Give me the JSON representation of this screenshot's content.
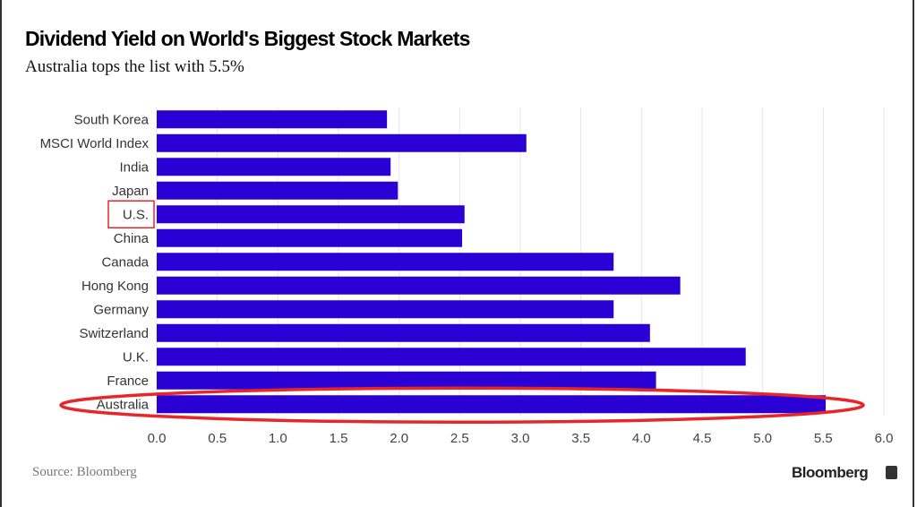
{
  "chart_data": {
    "type": "bar",
    "orientation": "horizontal",
    "title": "Dividend Yield on World's Biggest Stock Markets",
    "subtitle": "Australia tops the list with 5.5%",
    "categories": [
      "South Korea",
      "MSCI World Index",
      "India",
      "Japan",
      "U.S.",
      "China",
      "Canada",
      "Hong Kong",
      "Germany",
      "Switzerland",
      "U.K.",
      "France",
      "Australia"
    ],
    "values": [
      1.9,
      3.05,
      1.93,
      1.99,
      2.54,
      2.52,
      3.77,
      4.32,
      3.77,
      4.07,
      4.86,
      4.12,
      5.52
    ],
    "xlim": [
      0,
      6.0
    ],
    "xticks": [
      "0.0",
      "0.5",
      "1.0",
      "1.5",
      "2.0",
      "2.5",
      "3.0",
      "3.5",
      "4.0",
      "4.5",
      "5.0",
      "5.5",
      "6.0"
    ],
    "grid": true,
    "bar_color": "#2a00d4",
    "annotations": {
      "highlight_box": "U.S.",
      "highlight_ellipse": "Australia",
      "annotation_color": "#e8262a"
    },
    "source": "Source: Bloomberg"
  },
  "brand": "Bloomberg"
}
